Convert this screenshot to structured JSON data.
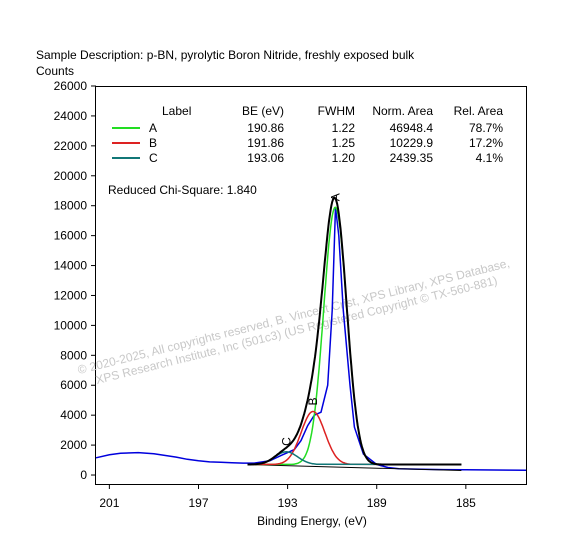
{
  "chart_data": {
    "type": "line",
    "title": "Sample Description:  p-BN, pyrolytic Boron Nitride, freshly exposed bulk",
    "ylabel": "Counts",
    "xlabel": "Binding Energy, (eV)",
    "x_reversed": true,
    "xlim": [
      201.6,
      182.3
    ],
    "ylim": [
      -600,
      26000
    ],
    "x_ticks": [
      201,
      197,
      193,
      189,
      185
    ],
    "y_ticks": [
      0,
      2000,
      4000,
      6000,
      8000,
      10000,
      12000,
      14000,
      16000,
      18000,
      20000,
      22000,
      24000,
      26000
    ],
    "grid": false,
    "legend_position": "top-right",
    "table": {
      "headers": [
        "Label",
        "BE (eV)",
        "FWHM",
        "Norm. Area",
        "Rel. Area"
      ],
      "rows": [
        {
          "label": "A",
          "be": "190.86",
          "fwhm": "1.22",
          "norm_area": "46948.4",
          "rel_area": "78.7%",
          "color": "#22dd22"
        },
        {
          "label": "B",
          "be": "191.86",
          "fwhm": "1.25",
          "norm_area": "10229.9",
          "rel_area": "17.2%",
          "color": "#dd2222"
        },
        {
          "label": "C",
          "be": "193.06",
          "fwhm": "1.20",
          "norm_area": "2439.35",
          "rel_area": "4.1%",
          "color": "#117777"
        }
      ]
    },
    "chi_square": "Reduced Chi-Square: 1.840",
    "peak_labels": [
      "A",
      "B",
      "C"
    ],
    "fit_range": [
      194.8,
      185.2
    ],
    "background_level": 700,
    "series": [
      {
        "name": "A",
        "color": "#22dd22",
        "center": 190.86,
        "fwhm": 1.22,
        "height": 17200
      },
      {
        "name": "B",
        "color": "#dd2222",
        "center": 191.86,
        "fwhm": 1.25,
        "height": 3550
      },
      {
        "name": "C",
        "color": "#117777",
        "center": 193.06,
        "fwhm": 1.2,
        "height": 850
      }
    ],
    "data_line": {
      "color": "#0000dd",
      "points": [
        [
          201.6,
          1150
        ],
        [
          201,
          1350
        ],
        [
          200.5,
          1450
        ],
        [
          199.7,
          1500
        ],
        [
          199,
          1420
        ],
        [
          198,
          1200
        ],
        [
          197.5,
          1050
        ],
        [
          197,
          950
        ],
        [
          196.5,
          880
        ],
        [
          196,
          850
        ],
        [
          195.5,
          820
        ],
        [
          195,
          800
        ],
        [
          194.5,
          800
        ],
        [
          193.8,
          950
        ],
        [
          193.3,
          1300
        ],
        [
          193,
          1500
        ],
        [
          192.7,
          1700
        ],
        [
          192.4,
          2300
        ],
        [
          192.1,
          3300
        ],
        [
          191.8,
          4000
        ],
        [
          191.5,
          4200
        ],
        [
          191.2,
          6000
        ],
        [
          191.0,
          11000
        ],
        [
          190.85,
          17900
        ],
        [
          190.7,
          16000
        ],
        [
          190.5,
          11000
        ],
        [
          190.2,
          6000
        ],
        [
          190,
          3200
        ],
        [
          189.6,
          1400
        ],
        [
          189,
          700
        ],
        [
          188.5,
          500
        ],
        [
          188,
          420
        ],
        [
          187,
          380
        ],
        [
          186,
          360
        ],
        [
          185,
          350
        ],
        [
          183,
          330
        ],
        [
          182.3,
          320
        ]
      ]
    }
  },
  "watermark": {
    "line1": "© 2020-2025,  All copyrights reserved,  B. Vincent Crist,  XPS Library, XPS Database,",
    "line2": "XPS Research Institute, Inc (501c3)   (US Registered Copyright © TX-560-881)"
  }
}
